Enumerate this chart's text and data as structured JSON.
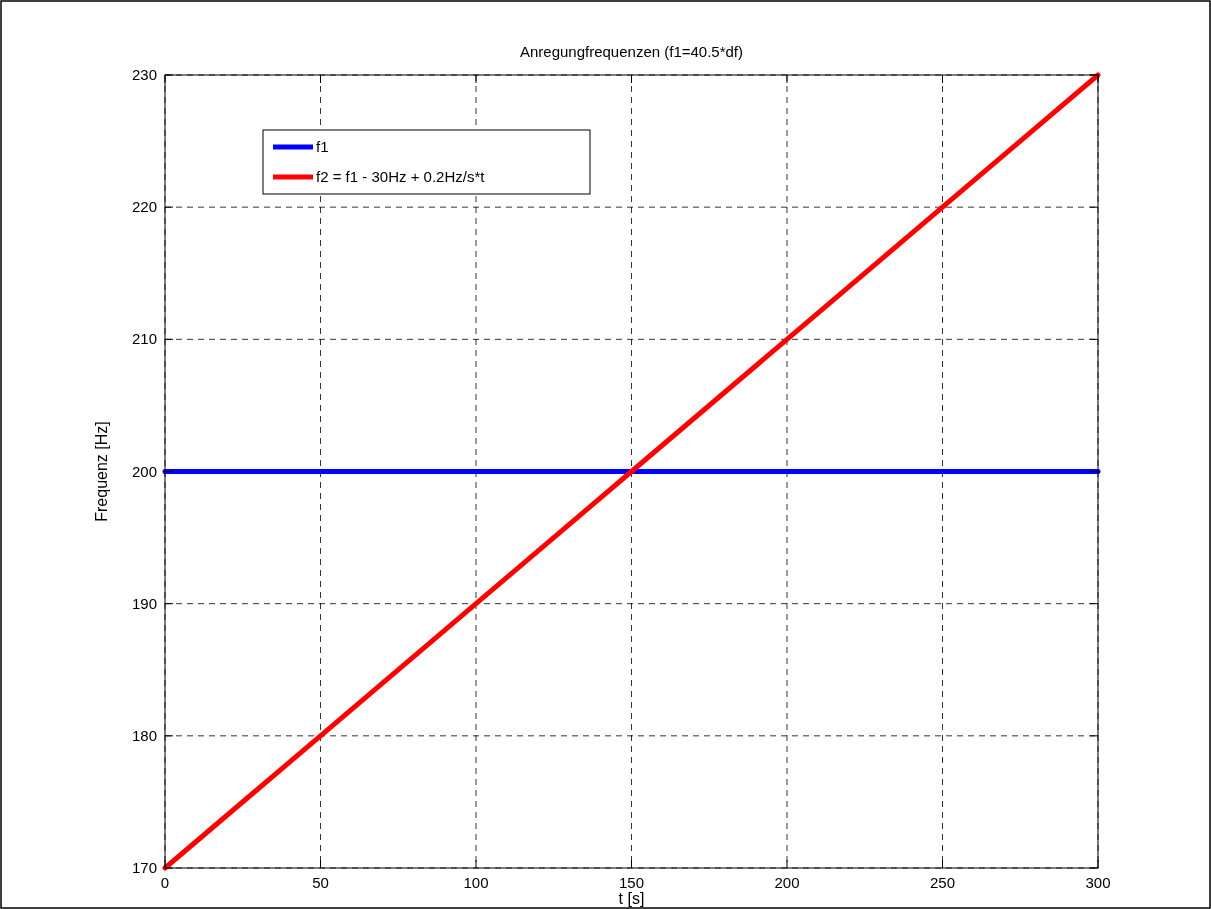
{
  "chart_data": {
    "type": "line",
    "title": "Anregungfrequenzen  (f1=40.5*df)",
    "xlabel": "t [s]",
    "ylabel": "Frequenz [Hz]",
    "xlim": [
      0,
      300
    ],
    "xticks": [
      0,
      50,
      100,
      150,
      200,
      250,
      300
    ],
    "ylim": [
      170,
      230
    ],
    "yticks": [
      170,
      180,
      190,
      200,
      210,
      220,
      230
    ],
    "grid": true,
    "legend": "top left",
    "line_style": "solid",
    "marker": "none",
    "series": [
      {
        "name": "f1",
        "color": "#0000ff",
        "x": [
          0,
          50,
          100,
          150,
          200,
          250,
          300
        ],
        "values": [
          200,
          200,
          200,
          200,
          200,
          200,
          200
        ]
      },
      {
        "name": "f2 = f1 - 30Hz + 0.2Hz/s*t",
        "color": "#ff0000",
        "x": [
          0,
          50,
          100,
          150,
          200,
          250,
          300
        ],
        "values": [
          170,
          180,
          190,
          200,
          210,
          220,
          230
        ]
      }
    ]
  }
}
